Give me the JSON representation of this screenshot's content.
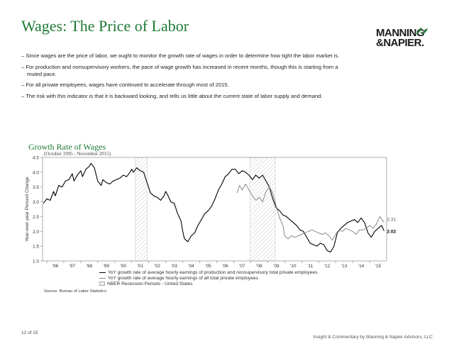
{
  "header": {
    "title": "Wages: The Price of Labor",
    "logo_line1": "MANNING",
    "logo_line2": "&NAPIER."
  },
  "bullets": [
    "Since wages are the price of labor, we ought to monitor the growth rate of wages in order to determine how tight the labor market is.",
    "For production and nonsupervisory workers, the pace of wage growth has increased in recent months, though this is starting from a muted pace.",
    "For all private employees, wages have continued to accelerate through most of 2015.",
    "The risk with this indicator is that it is backward looking, and tells us little about the current state of labor supply and demand."
  ],
  "footer": {
    "page": "12 of 15",
    "credit": "Insight & Commentary by Manning & Napier Advisors, LLC"
  },
  "colors": {
    "title_green": "#1f7a35",
    "series1": "#000000",
    "series2": "#888888"
  },
  "chart_data": {
    "type": "line",
    "title": "Growth Rate of Wages",
    "subtitle": "(October 1995 - November 2015)",
    "ylabel": "Year-over-year Percent Change",
    "ylim": [
      1.0,
      4.5
    ],
    "yticks": [
      "1.0",
      "1.5",
      "2.0",
      "2.5",
      "3.0",
      "3.5",
      "4.0",
      "4.5"
    ],
    "xlim": [
      1995.75,
      2016.0
    ],
    "xticks": [
      "'96",
      "'97",
      "'98",
      "'99",
      "'00",
      "'01",
      "'02",
      "'03",
      "'04",
      "'05",
      "'06",
      "'07",
      "'08",
      "'09",
      "'10",
      "'11",
      "'12",
      "'13",
      "'14",
      "'15"
    ],
    "recessions": [
      [
        2001.2,
        2001.9
      ],
      [
        2007.95,
        2009.45
      ]
    ],
    "series": [
      {
        "name": "YoY growth rate of average hourly earnings of production and nonsupervisory total private employees",
        "end_label": "2.02",
        "points": [
          [
            1995.8,
            2.95
          ],
          [
            1996.0,
            3.1
          ],
          [
            1996.2,
            3.05
          ],
          [
            1996.4,
            3.35
          ],
          [
            1996.5,
            3.2
          ],
          [
            1996.7,
            3.55
          ],
          [
            1996.9,
            3.5
          ],
          [
            1997.1,
            3.7
          ],
          [
            1997.3,
            3.75
          ],
          [
            1997.5,
            3.95
          ],
          [
            1997.6,
            3.7
          ],
          [
            1997.8,
            3.9
          ],
          [
            1998.0,
            4.05
          ],
          [
            1998.1,
            3.85
          ],
          [
            1998.3,
            4.1
          ],
          [
            1998.5,
            4.2
          ],
          [
            1998.6,
            4.3
          ],
          [
            1998.8,
            4.15
          ],
          [
            1999.0,
            3.7
          ],
          [
            1999.2,
            3.55
          ],
          [
            1999.3,
            3.75
          ],
          [
            1999.5,
            3.65
          ],
          [
            1999.7,
            3.6
          ],
          [
            1999.9,
            3.7
          ],
          [
            2000.1,
            3.75
          ],
          [
            2000.3,
            3.8
          ],
          [
            2000.5,
            3.9
          ],
          [
            2000.7,
            3.85
          ],
          [
            2000.9,
            4.0
          ],
          [
            2001.0,
            4.1
          ],
          [
            2001.1,
            4.0
          ],
          [
            2001.3,
            4.15
          ],
          [
            2001.5,
            4.05
          ],
          [
            2001.7,
            4.0
          ],
          [
            2001.9,
            3.65
          ],
          [
            2002.1,
            3.3
          ],
          [
            2002.3,
            3.2
          ],
          [
            2002.5,
            3.15
          ],
          [
            2002.7,
            3.05
          ],
          [
            2002.9,
            3.2
          ],
          [
            2003.0,
            3.35
          ],
          [
            2003.1,
            3.25
          ],
          [
            2003.3,
            3.0
          ],
          [
            2003.5,
            2.95
          ],
          [
            2003.7,
            2.6
          ],
          [
            2003.9,
            2.35
          ],
          [
            2004.0,
            2.0
          ],
          [
            2004.1,
            1.75
          ],
          [
            2004.3,
            1.65
          ],
          [
            2004.5,
            1.85
          ],
          [
            2004.7,
            1.95
          ],
          [
            2004.9,
            2.2
          ],
          [
            2005.1,
            2.4
          ],
          [
            2005.3,
            2.6
          ],
          [
            2005.5,
            2.7
          ],
          [
            2005.7,
            2.85
          ],
          [
            2005.9,
            3.1
          ],
          [
            2006.1,
            3.4
          ],
          [
            2006.3,
            3.6
          ],
          [
            2006.5,
            3.85
          ],
          [
            2006.7,
            3.95
          ],
          [
            2006.9,
            4.1
          ],
          [
            2007.1,
            4.1
          ],
          [
            2007.3,
            3.95
          ],
          [
            2007.5,
            4.05
          ],
          [
            2007.7,
            4.0
          ],
          [
            2007.9,
            3.9
          ],
          [
            2008.1,
            3.75
          ],
          [
            2008.3,
            3.9
          ],
          [
            2008.5,
            3.8
          ],
          [
            2008.7,
            3.9
          ],
          [
            2008.9,
            3.7
          ],
          [
            2009.1,
            3.5
          ],
          [
            2009.3,
            3.1
          ],
          [
            2009.5,
            2.8
          ],
          [
            2009.7,
            2.7
          ],
          [
            2009.9,
            2.55
          ],
          [
            2010.1,
            2.5
          ],
          [
            2010.3,
            2.4
          ],
          [
            2010.5,
            2.3
          ],
          [
            2010.7,
            2.2
          ],
          [
            2010.9,
            2.05
          ],
          [
            2011.1,
            2.0
          ],
          [
            2011.3,
            1.8
          ],
          [
            2011.5,
            1.6
          ],
          [
            2011.7,
            1.55
          ],
          [
            2011.9,
            1.5
          ],
          [
            2012.1,
            1.6
          ],
          [
            2012.3,
            1.55
          ],
          [
            2012.5,
            1.35
          ],
          [
            2012.7,
            1.3
          ],
          [
            2012.9,
            1.5
          ],
          [
            2013.1,
            1.95
          ],
          [
            2013.3,
            2.1
          ],
          [
            2013.5,
            2.2
          ],
          [
            2013.7,
            2.3
          ],
          [
            2013.9,
            2.35
          ],
          [
            2014.1,
            2.4
          ],
          [
            2014.3,
            2.3
          ],
          [
            2014.5,
            2.45
          ],
          [
            2014.7,
            2.3
          ],
          [
            2014.9,
            1.95
          ],
          [
            2015.1,
            1.8
          ],
          [
            2015.3,
            2.0
          ],
          [
            2015.5,
            2.1
          ],
          [
            2015.7,
            2.2
          ],
          [
            2015.85,
            2.02
          ]
        ]
      },
      {
        "name": "YoY growth rate of average hourly earnings of all total private employees",
        "end_label": "2.31",
        "points": [
          [
            2007.2,
            3.3
          ],
          [
            2007.35,
            3.55
          ],
          [
            2007.5,
            3.4
          ],
          [
            2007.7,
            3.6
          ],
          [
            2007.9,
            3.4
          ],
          [
            2008.1,
            3.2
          ],
          [
            2008.3,
            3.05
          ],
          [
            2008.5,
            3.15
          ],
          [
            2008.7,
            3.0
          ],
          [
            2008.9,
            3.35
          ],
          [
            2009.1,
            3.5
          ],
          [
            2009.3,
            3.3
          ],
          [
            2009.5,
            2.85
          ],
          [
            2009.7,
            2.45
          ],
          [
            2009.9,
            2.2
          ],
          [
            2010.0,
            1.85
          ],
          [
            2010.2,
            1.75
          ],
          [
            2010.4,
            1.85
          ],
          [
            2010.6,
            1.8
          ],
          [
            2010.8,
            1.85
          ],
          [
            2011.0,
            1.9
          ],
          [
            2011.2,
            1.95
          ],
          [
            2011.4,
            2.0
          ],
          [
            2011.6,
            2.05
          ],
          [
            2011.8,
            2.0
          ],
          [
            2012.0,
            1.95
          ],
          [
            2012.2,
            1.9
          ],
          [
            2012.4,
            1.95
          ],
          [
            2012.6,
            1.85
          ],
          [
            2012.8,
            1.7
          ],
          [
            2013.0,
            1.9
          ],
          [
            2013.2,
            2.05
          ],
          [
            2013.4,
            2.0
          ],
          [
            2013.6,
            2.1
          ],
          [
            2013.8,
            2.05
          ],
          [
            2014.0,
            2.0
          ],
          [
            2014.2,
            1.9
          ],
          [
            2014.4,
            2.05
          ],
          [
            2014.6,
            2.05
          ],
          [
            2014.8,
            2.1
          ],
          [
            2015.0,
            2.2
          ],
          [
            2015.2,
            2.1
          ],
          [
            2015.4,
            2.25
          ],
          [
            2015.6,
            2.5
          ],
          [
            2015.85,
            2.31
          ]
        ]
      }
    ],
    "legend": [
      "YoY growth rate of average hourly earnings of production and nonsupervisory total private employees",
      "YoY growth rate of average hourly earnings of all total private employees",
      "NBER Recession Periods - United States"
    ],
    "legend_position": "bottom",
    "grid": false,
    "source": "Source: Bureau of Labor Statistics"
  }
}
